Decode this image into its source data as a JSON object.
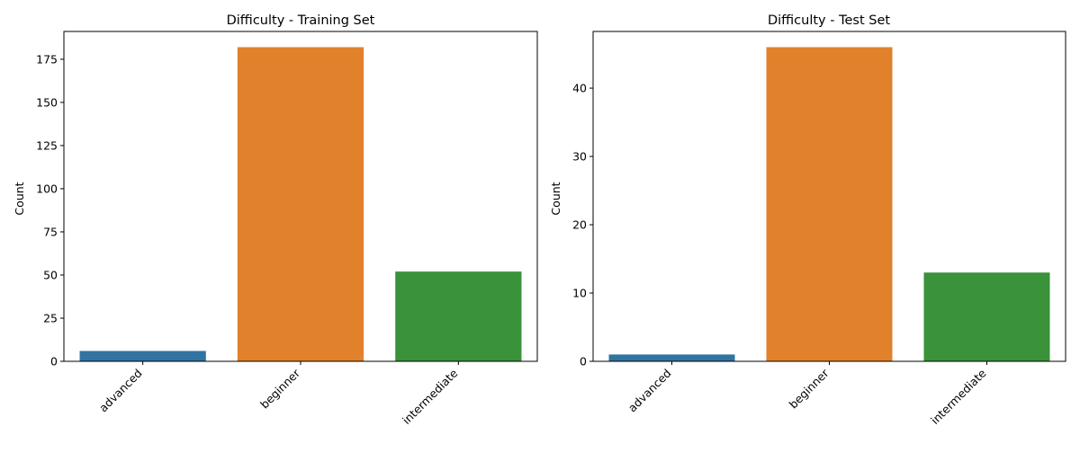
{
  "chart_data": [
    {
      "type": "bar",
      "title": "Difficulty - Training Set",
      "xlabel": "",
      "ylabel": "Count",
      "categories": [
        "advanced",
        "beginner",
        "intermediate"
      ],
      "values": [
        6,
        182,
        52
      ],
      "ylim": [
        0,
        191.1
      ],
      "yticks": [
        0,
        25,
        50,
        75,
        100,
        125,
        150,
        175
      ],
      "colors": [
        "#3274a1",
        "#e1812c",
        "#3a923a"
      ],
      "grid": false
    },
    {
      "type": "bar",
      "title": "Difficulty - Test Set",
      "xlabel": "",
      "ylabel": "Count",
      "categories": [
        "advanced",
        "beginner",
        "intermediate"
      ],
      "values": [
        1,
        46,
        13
      ],
      "ylim": [
        0,
        48.3
      ],
      "yticks": [
        0,
        10,
        20,
        30,
        40
      ],
      "colors": [
        "#3274a1",
        "#e1812c",
        "#3a923a"
      ],
      "grid": false
    }
  ]
}
